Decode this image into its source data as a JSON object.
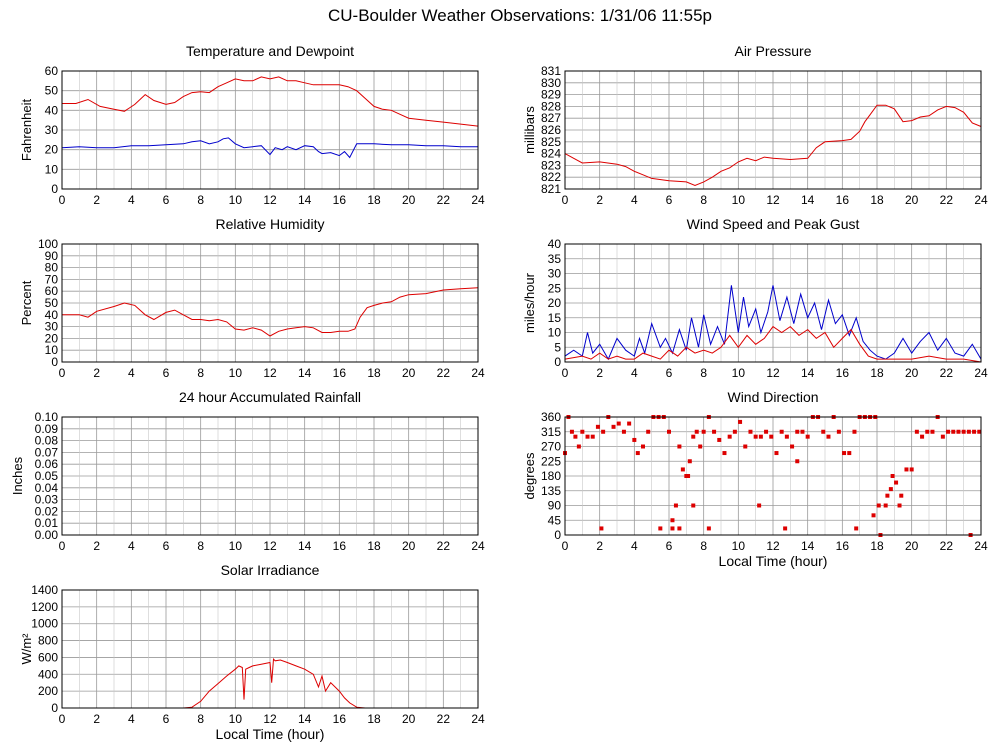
{
  "page_title": "CU-Boulder Weather Observations: 1/31/06 11:55p",
  "colors": {
    "primary": "#dd0000",
    "secondary": "#0000cc",
    "grid": "#9a9a9a",
    "axis": "#000000"
  },
  "chart_data": [
    {
      "id": "temperature",
      "type": "line",
      "title": "Temperature and Dewpoint",
      "xlabel": "",
      "ylabel": "Fahrenheit",
      "xlim": [
        0,
        24
      ],
      "ylim": [
        0,
        60
      ],
      "xticks": [
        0,
        2,
        4,
        6,
        8,
        10,
        12,
        14,
        16,
        18,
        20,
        22,
        24
      ],
      "yticks": [
        0,
        10,
        20,
        30,
        40,
        50,
        60
      ],
      "grid": true,
      "series": [
        {
          "color": "#dd0000",
          "x": [
            0,
            0.8,
            1.5,
            2.2,
            3,
            3.6,
            4.2,
            4.8,
            5.3,
            6,
            6.5,
            7,
            7.5,
            8,
            8.5,
            9,
            9.5,
            10,
            10.5,
            11,
            11.5,
            12,
            12.5,
            13,
            13.5,
            14,
            14.5,
            15,
            15.5,
            16,
            16.5,
            17,
            17.5,
            18,
            18.5,
            19,
            19.5,
            20,
            21,
            22,
            23,
            24
          ],
          "y": [
            43.5,
            43.5,
            45.5,
            42,
            40.5,
            39.5,
            43,
            48,
            45,
            43,
            44,
            47,
            49,
            49.5,
            49,
            52,
            54,
            56,
            55,
            55,
            57,
            56,
            57,
            55,
            55,
            54,
            53,
            53,
            53,
            53,
            52,
            50,
            46,
            42,
            40.5,
            40,
            38,
            36,
            35,
            34,
            33,
            32
          ]
        },
        {
          "color": "#0000cc",
          "x": [
            0,
            1,
            2,
            3,
            4,
            5,
            6,
            7,
            7.5,
            8,
            8.5,
            9,
            9.3,
            9.6,
            10,
            10.5,
            11,
            11.5,
            12,
            12.3,
            12.7,
            13,
            13.5,
            14,
            14.5,
            14.8,
            15,
            15.5,
            16,
            16.3,
            16.6,
            17,
            17.5,
            18,
            19,
            20,
            21,
            22,
            23,
            24
          ],
          "y": [
            21,
            21.5,
            21,
            21,
            22,
            22,
            22.5,
            23,
            24,
            24.5,
            23,
            24,
            25.5,
            26,
            23,
            21,
            21.5,
            22,
            17.5,
            21,
            20,
            21.5,
            20,
            22,
            21.5,
            19,
            18,
            18.5,
            17,
            19,
            16,
            23,
            23,
            23,
            22.5,
            22.5,
            22,
            22,
            21.5,
            21.5
          ]
        }
      ]
    },
    {
      "id": "pressure",
      "type": "line",
      "title": "Air Pressure",
      "xlabel": "",
      "ylabel": "millibars",
      "xlim": [
        0,
        24
      ],
      "ylim": [
        821,
        831
      ],
      "xticks": [
        0,
        2,
        4,
        6,
        8,
        10,
        12,
        14,
        16,
        18,
        20,
        22,
        24
      ],
      "yticks": [
        821,
        822,
        823,
        824,
        825,
        826,
        827,
        828,
        829,
        830,
        831
      ],
      "grid": true,
      "series": [
        {
          "color": "#dd0000",
          "x": [
            0,
            0.5,
            1,
            2,
            3,
            3.5,
            4,
            4.5,
            5,
            6,
            7,
            7.5,
            8,
            8.5,
            9,
            9.5,
            10,
            10.5,
            11,
            11.5,
            12,
            13,
            14,
            14.5,
            15,
            16,
            16.5,
            17,
            17.3,
            17.6,
            18,
            18.5,
            19,
            19.5,
            20,
            20.5,
            21,
            21.5,
            22,
            22.5,
            23,
            23.5,
            24
          ],
          "y": [
            824,
            823.6,
            823.2,
            823.3,
            823.1,
            822.9,
            822.5,
            822.2,
            821.9,
            821.7,
            821.6,
            821.3,
            821.6,
            822,
            822.5,
            822.8,
            823.3,
            823.6,
            823.4,
            823.7,
            823.6,
            823.5,
            823.6,
            824.5,
            825,
            825.1,
            825.2,
            825.9,
            826.7,
            827.3,
            828.1,
            828.1,
            827.8,
            826.7,
            826.8,
            827.1,
            827.2,
            827.7,
            828,
            827.9,
            827.5,
            826.6,
            826.3
          ]
        }
      ]
    },
    {
      "id": "humidity",
      "type": "line",
      "title": "Relative Humidity",
      "xlabel": "",
      "ylabel": "Percent",
      "xlim": [
        0,
        24
      ],
      "ylim": [
        0,
        100
      ],
      "xticks": [
        0,
        2,
        4,
        6,
        8,
        10,
        12,
        14,
        16,
        18,
        20,
        22,
        24
      ],
      "yticks": [
        0,
        10,
        20,
        30,
        40,
        50,
        60,
        70,
        80,
        90,
        100
      ],
      "grid": true,
      "series": [
        {
          "color": "#dd0000",
          "x": [
            0,
            1,
            1.5,
            2,
            3,
            3.6,
            4.2,
            4.8,
            5.3,
            6,
            6.5,
            7,
            7.5,
            8,
            8.5,
            9,
            9.5,
            10,
            10.5,
            11,
            11.5,
            12,
            12.5,
            13,
            13.5,
            14,
            14.5,
            15,
            15.5,
            16,
            16.5,
            16.9,
            17.2,
            17.6,
            18,
            18.5,
            19,
            19.5,
            20,
            21,
            22,
            23,
            24
          ],
          "y": [
            40,
            40,
            38,
            43,
            47,
            50,
            48,
            40,
            36,
            42,
            44,
            40,
            36,
            36,
            35,
            36,
            34,
            28,
            27,
            29,
            27,
            22,
            26,
            28,
            29,
            30,
            29,
            25,
            25,
            26,
            26,
            28,
            38,
            46,
            48,
            50,
            51,
            55,
            57,
            58,
            61,
            62,
            63
          ]
        }
      ]
    },
    {
      "id": "wind-speed",
      "type": "line",
      "title": "Wind Speed and Peak Gust",
      "xlabel": "",
      "ylabel": "miles/hour",
      "xlim": [
        0,
        24
      ],
      "ylim": [
        0,
        40
      ],
      "xticks": [
        0,
        2,
        4,
        6,
        8,
        10,
        12,
        14,
        16,
        18,
        20,
        22,
        24
      ],
      "yticks": [
        0,
        5,
        10,
        15,
        20,
        25,
        30,
        35,
        40
      ],
      "grid": true,
      "series": [
        {
          "color": "#0000cc",
          "x": [
            0,
            0.5,
            1,
            1.3,
            1.6,
            2,
            2.5,
            3,
            3.5,
            4,
            4.3,
            4.6,
            5,
            5.5,
            5.8,
            6.2,
            6.6,
            7,
            7.3,
            7.7,
            8,
            8.4,
            8.8,
            9.2,
            9.6,
            10,
            10.3,
            10.6,
            11,
            11.3,
            11.7,
            12,
            12.4,
            12.8,
            13.2,
            13.6,
            14,
            14.4,
            14.8,
            15.2,
            15.6,
            16,
            16.4,
            16.8,
            17.2,
            17.6,
            18,
            18.5,
            19,
            19.5,
            20,
            20.5,
            21,
            21.5,
            22,
            22.5,
            23,
            23.5,
            24
          ],
          "y": [
            2,
            4,
            2,
            10,
            3,
            6,
            1,
            8,
            4,
            2,
            8,
            3,
            13,
            5,
            8,
            3,
            11,
            4,
            15,
            5,
            16,
            6,
            12,
            6,
            26,
            10,
            22,
            12,
            18,
            10,
            17,
            26,
            14,
            22,
            13,
            23,
            15,
            20,
            11,
            21,
            13,
            16,
            9,
            15,
            7,
            4,
            2,
            1,
            3,
            8,
            3,
            7,
            10,
            4,
            8,
            3,
            2,
            6,
            1
          ]
        },
        {
          "color": "#dd0000",
          "x": [
            0,
            1,
            1.5,
            2,
            2.5,
            3,
            3.5,
            4,
            4.5,
            5,
            5.5,
            6,
            6.5,
            7,
            7.5,
            8,
            8.5,
            9,
            9.5,
            10,
            10.5,
            11,
            11.5,
            12,
            12.5,
            13,
            13.5,
            14,
            14.5,
            15,
            15.5,
            16,
            16.5,
            17,
            17.5,
            18,
            19,
            20,
            21,
            22,
            23,
            24
          ],
          "y": [
            1,
            2,
            1,
            3,
            1,
            2,
            1,
            1,
            3,
            2,
            1,
            4,
            2,
            5,
            3,
            4,
            3,
            5,
            9,
            5,
            9,
            6,
            8,
            12,
            10,
            12,
            9,
            11,
            8,
            10,
            5,
            8,
            11,
            6,
            2,
            1,
            1,
            1,
            2,
            1,
            1,
            0
          ]
        }
      ]
    },
    {
      "id": "rainfall",
      "type": "line",
      "title": "24 hour Accumulated Rainfall",
      "xlabel": "",
      "ylabel": "Inches",
      "xlim": [
        0,
        24
      ],
      "ylim": [
        0,
        0.1
      ],
      "xticks": [
        0,
        2,
        4,
        6,
        8,
        10,
        12,
        14,
        16,
        18,
        20,
        22,
        24
      ],
      "yticks": [
        0,
        0.01,
        0.02,
        0.03,
        0.04,
        0.05,
        0.06,
        0.07,
        0.08,
        0.09,
        0.1
      ],
      "ytick_labels": [
        "0.00",
        "0.01",
        "0.02",
        "0.03",
        "0.04",
        "0.05",
        "0.06",
        "0.07",
        "0.08",
        "0.09",
        "0.10"
      ],
      "grid": true,
      "series": [
        {
          "color": "#dd0000",
          "x": [
            0,
            24
          ],
          "y": [
            0,
            0
          ]
        }
      ]
    },
    {
      "id": "wind-direction",
      "type": "scatter",
      "title": "Wind Direction",
      "xlabel": "Local Time (hour)",
      "ylabel": "degrees",
      "xlim": [
        0,
        24
      ],
      "ylim": [
        0,
        360
      ],
      "xticks": [
        0,
        2,
        4,
        6,
        8,
        10,
        12,
        14,
        16,
        18,
        20,
        22,
        24
      ],
      "yticks": [
        0,
        45,
        90,
        135,
        180,
        225,
        270,
        315,
        360
      ],
      "grid": true,
      "series": [
        {
          "color": "#dd0000",
          "x": [
            0,
            0.2,
            0.4,
            0.6,
            0.8,
            1,
            1.3,
            1.6,
            1.9,
            2.2,
            2.5,
            2.8,
            3.1,
            3.4,
            3.7,
            4,
            4.2,
            4.5,
            4.8,
            5.1,
            5.4,
            5.7,
            6,
            6.2,
            6.4,
            6.6,
            6.8,
            7,
            7.2,
            7.4,
            7.6,
            7.8,
            8,
            8.3,
            8.6,
            8.9,
            9.2,
            9.5,
            9.8,
            10.1,
            10.4,
            10.7,
            11,
            11.3,
            11.6,
            11.9,
            12.2,
            12.5,
            12.8,
            13.1,
            13.4,
            13.7,
            14,
            14.3,
            14.6,
            14.9,
            15.2,
            15.5,
            15.8,
            16.1,
            16.4,
            16.7,
            17,
            17.3,
            17.6,
            17.9,
            18.2,
            18.5,
            18.8,
            19.1,
            19.4,
            19.7,
            20,
            20.3,
            20.6,
            20.9,
            21.2,
            21.5,
            21.8,
            22.1,
            22.4,
            22.7,
            23,
            23.3,
            23.6,
            23.9,
            2.1,
            5.5,
            6.2,
            6.6,
            7.1,
            7.4,
            8.3,
            11.2,
            12.7,
            13.4,
            16.8,
            17.8,
            18.1,
            18.6,
            18.9,
            19.3,
            23.4
          ],
          "y": [
            250,
            360,
            315,
            300,
            270,
            315,
            300,
            300,
            330,
            315,
            360,
            330,
            340,
            315,
            340,
            290,
            250,
            270,
            315,
            360,
            360,
            360,
            315,
            45,
            90,
            270,
            200,
            180,
            225,
            300,
            315,
            270,
            315,
            360,
            315,
            290,
            250,
            300,
            315,
            345,
            270,
            315,
            300,
            300,
            315,
            300,
            250,
            315,
            300,
            270,
            315,
            315,
            300,
            360,
            360,
            315,
            300,
            360,
            315,
            250,
            250,
            315,
            360,
            360,
            360,
            360,
            0,
            90,
            140,
            160,
            120,
            200,
            200,
            315,
            300,
            315,
            315,
            360,
            300,
            315,
            315,
            315,
            315,
            315,
            315,
            315,
            20,
            20,
            20,
            20,
            180,
            90,
            20,
            90,
            20,
            225,
            20,
            60,
            90,
            120,
            180,
            90,
            0
          ]
        }
      ]
    },
    {
      "id": "solar",
      "type": "area",
      "title": "Solar Irradiance",
      "xlabel": "Local Time (hour)",
      "ylabel": "W/m²",
      "xlim": [
        0,
        24
      ],
      "ylim": [
        0,
        1400
      ],
      "xticks": [
        0,
        2,
        4,
        6,
        8,
        10,
        12,
        14,
        16,
        18,
        20,
        22,
        24
      ],
      "yticks": [
        0,
        200,
        400,
        600,
        800,
        1000,
        1200,
        1400
      ],
      "grid": true,
      "series": [
        {
          "color": "#dd0000",
          "x": [
            0,
            7,
            7.5,
            8,
            8.5,
            9,
            9.5,
            10,
            10.2,
            10.4,
            10.5,
            10.6,
            10.8,
            11,
            11.5,
            12,
            12.1,
            12.2,
            12.3,
            12.6,
            13,
            13.5,
            14,
            14.5,
            14.8,
            15,
            15.2,
            15.5,
            16,
            16.3,
            16.6,
            17,
            17.5,
            24
          ],
          "y": [
            0,
            0,
            10,
            80,
            200,
            290,
            380,
            460,
            500,
            480,
            100,
            460,
            480,
            500,
            520,
            540,
            300,
            580,
            560,
            570,
            540,
            500,
            460,
            400,
            250,
            380,
            200,
            300,
            200,
            120,
            60,
            10,
            0,
            0
          ]
        }
      ]
    }
  ]
}
